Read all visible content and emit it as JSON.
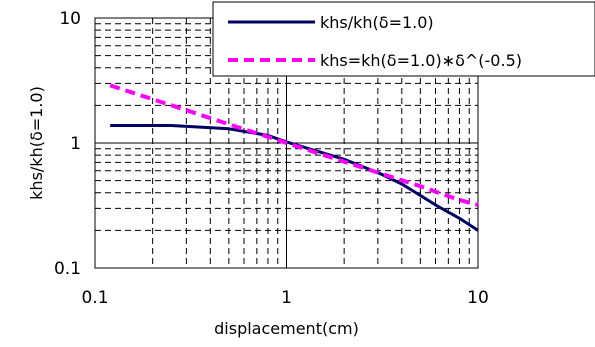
{
  "chart_data": {
    "type": "line",
    "title": "",
    "xlabel": "displacement(cm)",
    "ylabel": "khs/kh(δ=1.0)",
    "x_scale": "log",
    "y_scale": "log",
    "xlim": [
      0.1,
      10
    ],
    "ylim": [
      0.1,
      10
    ],
    "x_ticks": [
      "0.1",
      "1",
      "10"
    ],
    "y_ticks": [
      "0.1",
      "1",
      "10"
    ],
    "grid": "major solid, minor dashed",
    "legend_position": "top-right",
    "series": [
      {
        "name": "khs/kh(δ=1.0)",
        "color": "#000066",
        "style": "solid",
        "x": [
          0.12,
          0.25,
          0.5,
          0.8,
          1.0,
          2.0,
          3.0,
          4.0,
          5.0,
          6.0,
          8.0,
          10.0
        ],
        "y": [
          1.38,
          1.38,
          1.3,
          1.15,
          1.02,
          0.74,
          0.58,
          0.47,
          0.38,
          0.32,
          0.25,
          0.2
        ]
      },
      {
        "name": "khs=kh(δ=1.0)∗δ^(-0.5)",
        "color": "#ff00ff",
        "style": "dashed",
        "x": [
          0.12,
          0.2,
          0.3,
          0.5,
          0.8,
          1.0,
          2.0,
          3.0,
          5.0,
          8.0,
          10.0
        ],
        "y": [
          2.89,
          2.24,
          1.83,
          1.41,
          1.12,
          1.0,
          0.71,
          0.58,
          0.45,
          0.35,
          0.32
        ]
      }
    ]
  }
}
